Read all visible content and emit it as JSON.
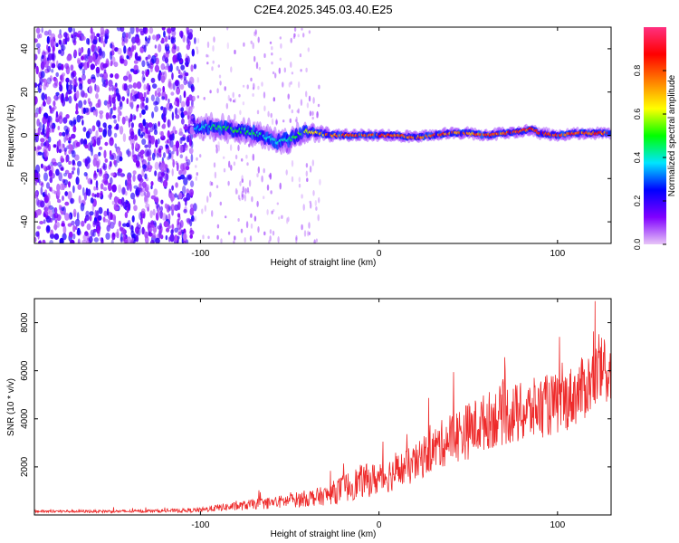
{
  "figure_title": "C2E4.2025.345.03.40.E25",
  "chart_data": [
    {
      "type": "heatmap",
      "title": "C2E4.2025.345.03.40.E25",
      "xlabel": "Height of straight line (km)",
      "ylabel": "Frequency (Hz)",
      "xlim": [
        -193,
        130
      ],
      "ylim": [
        -50,
        50
      ],
      "xticks": [
        -100,
        0,
        100
      ],
      "yticks": [
        -40,
        -20,
        0,
        20,
        40
      ],
      "colorbar": {
        "label": "Normalized spectral amplitude",
        "range": [
          0,
          1
        ],
        "ticks": [
          "0.0",
          "0.2",
          "0.4",
          "0.6",
          "0.8"
        ],
        "colormap": [
          "#e8c6f7",
          "#8000ff",
          "#0000ff",
          "#00e5ff",
          "#00ff00",
          "#ffff00",
          "#ff8000",
          "#ff0000",
          "#ff3080"
        ]
      },
      "noise_region_x": [
        -193,
        -103
      ],
      "signal_track": {
        "x": [
          -103,
          -95,
          -85,
          -75,
          -65,
          -57,
          -50,
          -42,
          -35,
          -25,
          -10,
          0,
          10,
          20,
          30,
          40,
          50,
          60,
          70,
          80,
          85,
          90,
          100,
          110,
          120,
          130
        ],
        "freq": [
          3,
          4,
          3,
          2,
          0,
          -3,
          -2,
          2,
          1,
          0,
          0,
          0,
          0,
          -1,
          0,
          1,
          1,
          0,
          1,
          2,
          3,
          1,
          0,
          1,
          1,
          1
        ],
        "spread": [
          4,
          5,
          5,
          5,
          5,
          5,
          5,
          4,
          3,
          2,
          2,
          2,
          2,
          2,
          2,
          2,
          2,
          2,
          2,
          2,
          2,
          2,
          2,
          2,
          2,
          2
        ],
        "amplitude": [
          0.35,
          0.45,
          0.5,
          0.5,
          0.45,
          0.4,
          0.45,
          0.6,
          0.7,
          0.8,
          0.85,
          0.85,
          0.85,
          0.8,
          0.85,
          0.8,
          0.8,
          0.85,
          0.85,
          0.85,
          0.85,
          0.85,
          0.85,
          0.85,
          0.85,
          0.85
        ]
      }
    },
    {
      "type": "line",
      "xlabel": "Height of straight line (km)",
      "ylabel": "SNR (10 * v/v)",
      "xlim": [
        -193,
        130
      ],
      "ylim": [
        0,
        9000
      ],
      "xticks": [
        -100,
        0,
        100
      ],
      "yticks": [
        2000,
        4000,
        6000,
        8000
      ],
      "series": [
        {
          "name": "SNR",
          "color": "#ee2b2b",
          "x": [
            -193,
            -140,
            -110,
            -100,
            -90,
            -80,
            -70,
            -60,
            -50,
            -40,
            -30,
            -20,
            -10,
            0,
            10,
            20,
            30,
            40,
            50,
            60,
            70,
            80,
            90,
            100,
            110,
            120,
            125,
            130
          ],
          "y": [
            150,
            150,
            180,
            200,
            300,
            350,
            450,
            500,
            600,
            700,
            800,
            1100,
            1400,
            1500,
            1800,
            2100,
            2700,
            3200,
            3500,
            3900,
            4200,
            4200,
            4500,
            4600,
            5000,
            5600,
            6000,
            6000
          ],
          "noise": [
            60,
            60,
            80,
            100,
            150,
            180,
            220,
            250,
            300,
            350,
            400,
            600,
            700,
            700,
            750,
            800,
            900,
            1100,
            1200,
            1200,
            1300,
            1300,
            1300,
            1300,
            1300,
            1400,
            1400,
            1400
          ],
          "peak_max": 8900
        }
      ]
    }
  ]
}
